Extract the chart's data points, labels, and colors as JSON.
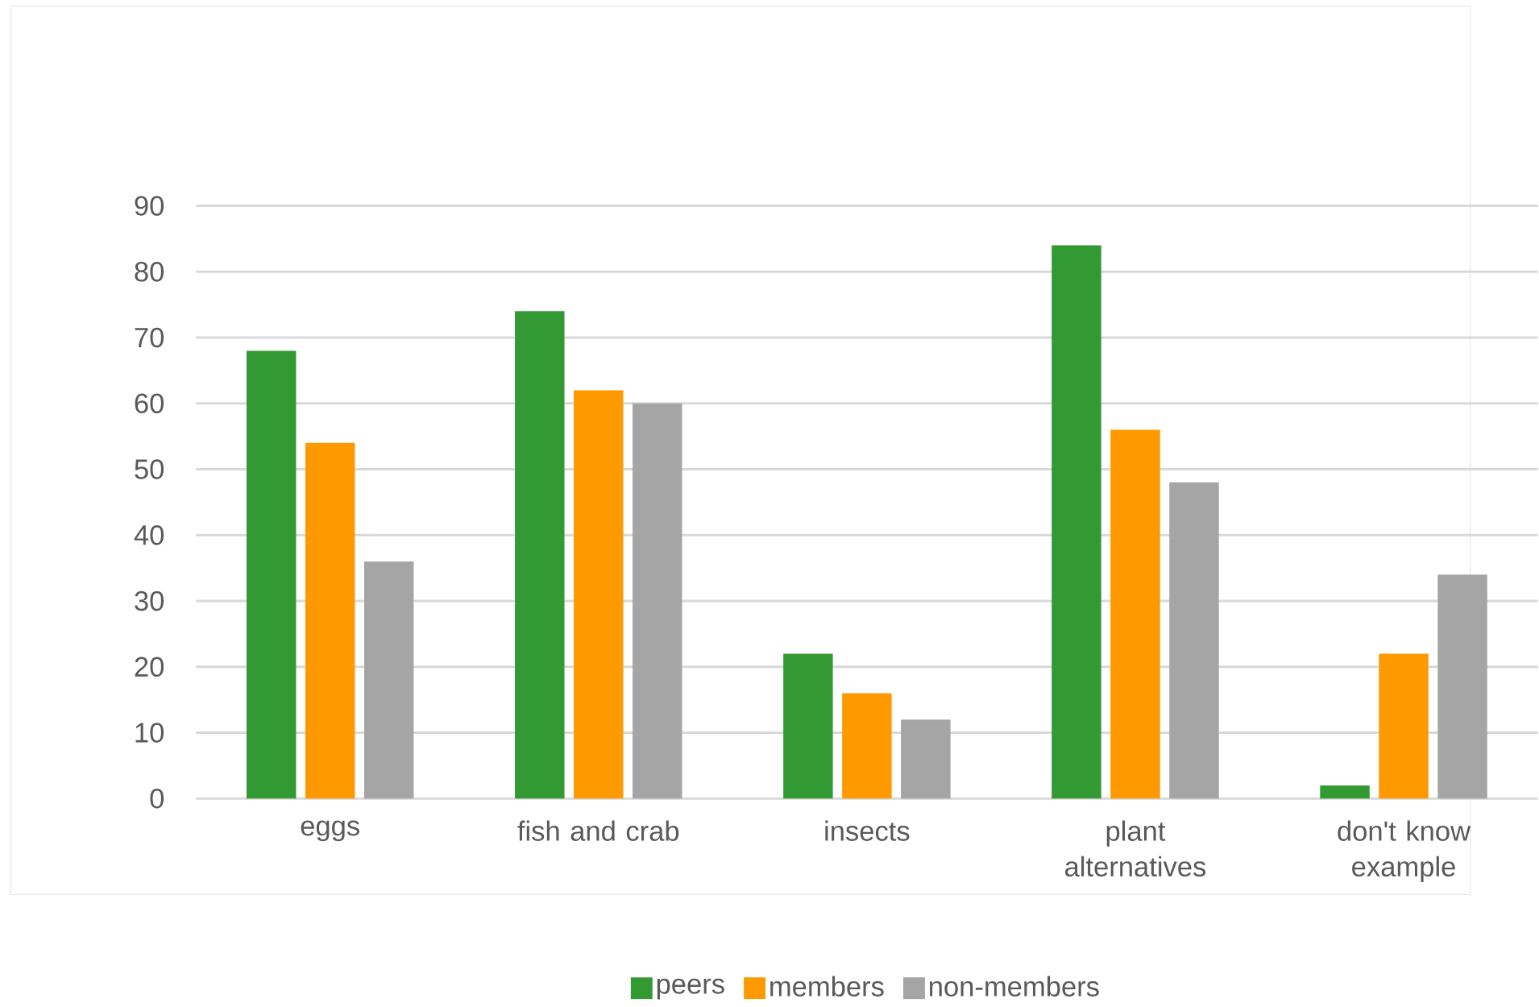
{
  "chart_data": {
    "type": "bar",
    "categories": [
      "eggs",
      "fish and crab",
      "insects",
      "plant alternatives",
      "don't know example"
    ],
    "series": [
      {
        "name": "peers",
        "color": "#339933",
        "values": [
          68,
          74,
          22,
          84,
          2
        ]
      },
      {
        "name": "members",
        "color": "#ff9900",
        "values": [
          54,
          62,
          16,
          56,
          22
        ]
      },
      {
        "name": "non-members",
        "color": "#a5a5a5",
        "values": [
          36,
          60,
          12,
          48,
          34
        ]
      }
    ],
    "ylim": [
      0,
      90
    ],
    "yticks": [
      0,
      10,
      20,
      30,
      40,
      50,
      60,
      70,
      80,
      90
    ],
    "grid": "y",
    "legend": "bottom"
  }
}
